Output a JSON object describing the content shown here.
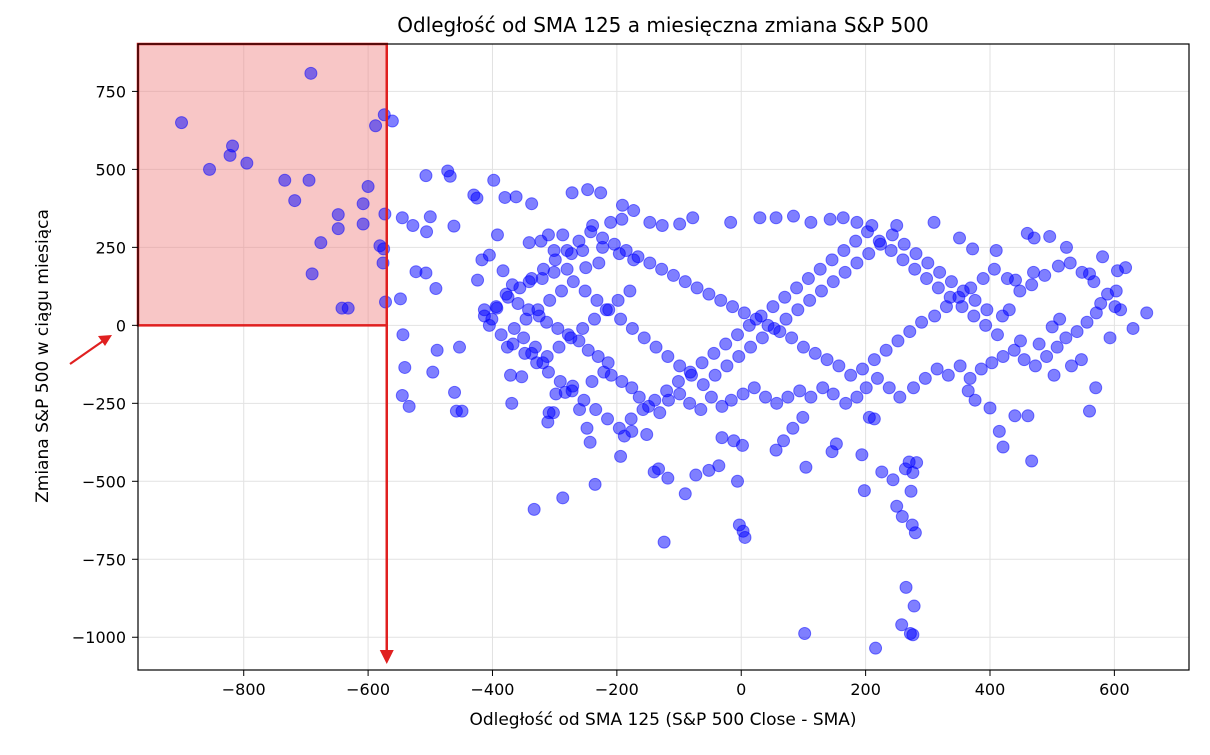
{
  "chart_data": {
    "type": "scatter",
    "title": "Odległość od SMA 125 a miesięczna zmiana S&P 500",
    "xlabel": "Odległość od SMA 125 (S&P 500 Close - SMA)",
    "ylabel": "Zmiana S&P 500 w ciągu miesiąca",
    "xlim": [
      -970,
      720
    ],
    "ylim": [
      -1105,
      902
    ],
    "x_ticks": [
      -800,
      -600,
      -400,
      -200,
      0,
      200,
      400,
      600
    ],
    "x_tick_labels": [
      "−800",
      "−600",
      "−400",
      "−200",
      "0",
      "200",
      "400",
      "600"
    ],
    "y_ticks": [
      750,
      500,
      250,
      0,
      -250,
      -500,
      -750,
      -1000
    ],
    "y_tick_labels": [
      "750",
      "500",
      "250",
      "0",
      "−250",
      "−500",
      "−750",
      "−1000"
    ],
    "grid": true,
    "point_color": "#0000ff",
    "point_opacity": 0.5,
    "highlight": {
      "x_range": [
        -970,
        -570
      ],
      "y_range": [
        0,
        902
      ],
      "fill": "#f08080",
      "edge": "#e02020"
    },
    "arrow_down_x": -570,
    "points": [
      [
        -692,
        808
      ],
      [
        -900,
        650
      ],
      [
        -818,
        575
      ],
      [
        -822,
        545
      ],
      [
        -855,
        500
      ],
      [
        -795,
        520
      ],
      [
        -734,
        465
      ],
      [
        -695,
        465
      ],
      [
        -718,
        400
      ],
      [
        -600,
        445
      ],
      [
        -608,
        390
      ],
      [
        -648,
        355
      ],
      [
        -573,
        357
      ],
      [
        -676,
        265
      ],
      [
        -648,
        310
      ],
      [
        -608,
        325
      ],
      [
        -581,
        255
      ],
      [
        -575,
        245
      ],
      [
        -576,
        200
      ],
      [
        -690,
        165
      ],
      [
        -572,
        75
      ],
      [
        -642,
        55
      ],
      [
        -632,
        55
      ],
      [
        -588,
        640
      ],
      [
        -574,
        675
      ],
      [
        -561,
        655
      ],
      [
        -472,
        495
      ],
      [
        -468,
        478
      ],
      [
        -507,
        480
      ],
      [
        -398,
        465
      ],
      [
        -430,
        418
      ],
      [
        -425,
        408
      ],
      [
        -380,
        410
      ],
      [
        -362,
        412
      ],
      [
        -337,
        390
      ],
      [
        -272,
        425
      ],
      [
        -247,
        435
      ],
      [
        -226,
        425
      ],
      [
        -191,
        385
      ],
      [
        -173,
        368
      ],
      [
        -500,
        348
      ],
      [
        -462,
        318
      ],
      [
        -506,
        300
      ],
      [
        -523,
        172
      ],
      [
        -507,
        168
      ],
      [
        -491,
        118
      ],
      [
        -545,
        345
      ],
      [
        -528,
        320
      ],
      [
        -548,
        85
      ],
      [
        -544,
        -30
      ],
      [
        -541,
        -135
      ],
      [
        -545,
        -225
      ],
      [
        -534,
        -260
      ],
      [
        -489,
        -80
      ],
      [
        -496,
        -150
      ],
      [
        -453,
        -70
      ],
      [
        -461,
        -215
      ],
      [
        -458,
        -275
      ],
      [
        -449,
        -275
      ],
      [
        -417,
        210
      ],
      [
        -424,
        145
      ],
      [
        -405,
        225
      ],
      [
        -392,
        290
      ],
      [
        -383,
        175
      ],
      [
        -393,
        55
      ],
      [
        -413,
        50
      ],
      [
        -401,
        20
      ],
      [
        -376,
        -70
      ],
      [
        -371,
        -160
      ],
      [
        -369,
        -250
      ],
      [
        -353,
        -165
      ],
      [
        -337,
        -90
      ],
      [
        -319,
        -120
      ],
      [
        -298,
        -220
      ],
      [
        -309,
        -280
      ],
      [
        -283,
        -215
      ],
      [
        -271,
        -195
      ],
      [
        -248,
        -330
      ],
      [
        -243,
        -375
      ],
      [
        -235,
        -510
      ],
      [
        -333,
        -590
      ],
      [
        -287,
        -553
      ],
      [
        -124,
        -695
      ],
      [
        -311,
        -310
      ],
      [
        -302,
        -280
      ],
      [
        -260,
        -270
      ],
      [
        -240,
        -180
      ],
      [
        -221,
        -150
      ],
      [
        -194,
        -420
      ],
      [
        -188,
        -355
      ],
      [
        -176,
        -340
      ],
      [
        -152,
        -350
      ],
      [
        -140,
        -470
      ],
      [
        -133,
        -460
      ],
      [
        -118,
        -490
      ],
      [
        -90,
        -540
      ],
      [
        -73,
        -480
      ],
      [
        -52,
        -465
      ],
      [
        -36,
        -450
      ],
      [
        -6,
        -500
      ],
      [
        -3,
        -640
      ],
      [
        3,
        -660
      ],
      [
        6,
        -680
      ],
      [
        2,
        -385
      ],
      [
        -12,
        -370
      ],
      [
        -31,
        -360
      ],
      [
        56,
        -400
      ],
      [
        68,
        -370
      ],
      [
        83,
        -330
      ],
      [
        99,
        -295
      ],
      [
        104,
        -455
      ],
      [
        146,
        -405
      ],
      [
        153,
        -380
      ],
      [
        194,
        -415
      ],
      [
        206,
        -295
      ],
      [
        214,
        -300
      ],
      [
        198,
        -530
      ],
      [
        226,
        -470
      ],
      [
        244,
        -495
      ],
      [
        250,
        -580
      ],
      [
        259,
        -613
      ],
      [
        264,
        -460
      ],
      [
        276,
        -472
      ],
      [
        270,
        -438
      ],
      [
        282,
        -440
      ],
      [
        273,
        -532
      ],
      [
        275,
        -640
      ],
      [
        280,
        -665
      ],
      [
        265,
        -840
      ],
      [
        278,
        -900
      ],
      [
        258,
        -960
      ],
      [
        272,
        -988
      ],
      [
        276,
        -992
      ],
      [
        216,
        -1035
      ],
      [
        102,
        -988
      ],
      [
        365,
        -210
      ],
      [
        376,
        -240
      ],
      [
        400,
        -265
      ],
      [
        415,
        -340
      ],
      [
        421,
        -390
      ],
      [
        440,
        -290
      ],
      [
        461,
        -290
      ],
      [
        467,
        -435
      ],
      [
        547,
        -110
      ],
      [
        560,
        -275
      ],
      [
        570,
        -200
      ],
      [
        593,
        -40
      ],
      [
        610,
        50
      ],
      [
        630,
        -10
      ],
      [
        652,
        40
      ],
      [
        605,
        175
      ],
      [
        618,
        185
      ],
      [
        581,
        220
      ],
      [
        560,
        165
      ],
      [
        523,
        250
      ],
      [
        496,
        285
      ],
      [
        471,
        280
      ],
      [
        460,
        295
      ],
      [
        431,
        50
      ],
      [
        420,
        30
      ],
      [
        449,
        -50
      ],
      [
        479,
        -60
      ],
      [
        503,
        -160
      ],
      [
        531,
        -130
      ],
      [
        500,
        -5
      ],
      [
        512,
        20
      ],
      [
        578,
        70
      ],
      [
        601,
        60
      ],
      [
        470,
        170
      ],
      [
        441,
        145
      ],
      [
        410,
        240
      ],
      [
        372,
        245
      ],
      [
        351,
        280
      ],
      [
        310,
        330
      ],
      [
        250,
        320
      ],
      [
        210,
        320
      ],
      [
        186,
        330
      ],
      [
        164,
        345
      ],
      [
        143,
        340
      ],
      [
        112,
        330
      ],
      [
        84,
        350
      ],
      [
        56,
        345
      ],
      [
        30,
        345
      ],
      [
        -17,
        330
      ],
      [
        -78,
        345
      ],
      [
        -99,
        325
      ],
      [
        -127,
        320
      ],
      [
        -147,
        330
      ],
      [
        -192,
        340
      ],
      [
        -210,
        330
      ],
      [
        -239,
        320
      ],
      [
        -287,
        290
      ],
      [
        -310,
        290
      ],
      [
        -322,
        270
      ],
      [
        -341,
        265
      ],
      [
        -301,
        240
      ],
      [
        -273,
        230
      ],
      [
        -255,
        240
      ],
      [
        -223,
        250
      ],
      [
        -196,
        230
      ],
      [
        -173,
        210
      ],
      [
        -229,
        200
      ],
      [
        -250,
        185
      ],
      [
        -280,
        180
      ],
      [
        -301,
        170
      ],
      [
        -320,
        150
      ],
      [
        -341,
        140
      ],
      [
        -368,
        130
      ],
      [
        -378,
        100
      ],
      [
        -359,
        70
      ],
      [
        -342,
        50
      ],
      [
        -325,
        30
      ],
      [
        -313,
        10
      ],
      [
        -295,
        -10
      ],
      [
        -278,
        -30
      ],
      [
        -261,
        -50
      ],
      [
        -246,
        -80
      ],
      [
        -230,
        -100
      ],
      [
        -214,
        -120
      ],
      [
        -209,
        -160
      ],
      [
        -192,
        -180
      ],
      [
        -176,
        -200
      ],
      [
        -164,
        -230
      ],
      [
        -149,
        -260
      ],
      [
        -131,
        -280
      ],
      [
        -117,
        -240
      ],
      [
        -99,
        -220
      ],
      [
        -83,
        -250
      ],
      [
        -65,
        -270
      ],
      [
        -48,
        -230
      ],
      [
        -31,
        -260
      ],
      [
        -16,
        -240
      ],
      [
        3,
        -220
      ],
      [
        21,
        -200
      ],
      [
        39,
        -230
      ],
      [
        57,
        -250
      ],
      [
        75,
        -230
      ],
      [
        94,
        -210
      ],
      [
        112,
        -230
      ],
      [
        131,
        -200
      ],
      [
        148,
        -220
      ],
      [
        168,
        -250
      ],
      [
        186,
        -230
      ],
      [
        201,
        -200
      ],
      [
        219,
        -170
      ],
      [
        238,
        -200
      ],
      [
        255,
        -230
      ],
      [
        277,
        -200
      ],
      [
        296,
        -170
      ],
      [
        315,
        -140
      ],
      [
        333,
        -160
      ],
      [
        352,
        -130
      ],
      [
        368,
        -170
      ],
      [
        386,
        -140
      ],
      [
        403,
        -120
      ],
      [
        421,
        -100
      ],
      [
        439,
        -80
      ],
      [
        455,
        -110
      ],
      [
        473,
        -130
      ],
      [
        491,
        -100
      ],
      [
        508,
        -70
      ],
      [
        522,
        -40
      ],
      [
        540,
        -20
      ],
      [
        556,
        10
      ],
      [
        571,
        40
      ],
      [
        589,
        100
      ],
      [
        603,
        110
      ],
      [
        567,
        140
      ],
      [
        548,
        170
      ],
      [
        529,
        200
      ],
      [
        510,
        190
      ],
      [
        488,
        160
      ],
      [
        467,
        130
      ],
      [
        448,
        110
      ],
      [
        428,
        150
      ],
      [
        407,
        180
      ],
      [
        389,
        150
      ],
      [
        369,
        120
      ],
      [
        350,
        90
      ],
      [
        330,
        60
      ],
      [
        311,
        30
      ],
      [
        290,
        10
      ],
      [
        271,
        -20
      ],
      [
        252,
        -50
      ],
      [
        233,
        -80
      ],
      [
        214,
        -110
      ],
      [
        195,
        -140
      ],
      [
        176,
        -160
      ],
      [
        157,
        -130
      ],
      [
        138,
        -110
      ],
      [
        119,
        -90
      ],
      [
        100,
        -70
      ],
      [
        81,
        -40
      ],
      [
        62,
        -20
      ],
      [
        43,
        0
      ],
      [
        24,
        20
      ],
      [
        5,
        40
      ],
      [
        -14,
        60
      ],
      [
        -33,
        80
      ],
      [
        -52,
        100
      ],
      [
        -71,
        120
      ],
      [
        -90,
        140
      ],
      [
        -109,
        160
      ],
      [
        -128,
        180
      ],
      [
        -147,
        200
      ],
      [
        -166,
        220
      ],
      [
        -185,
        240
      ],
      [
        -204,
        260
      ],
      [
        -223,
        280
      ],
      [
        -242,
        300
      ],
      [
        -261,
        270
      ],
      [
        -280,
        240
      ],
      [
        -299,
        210
      ],
      [
        -318,
        180
      ],
      [
        -337,
        150
      ],
      [
        -356,
        120
      ],
      [
        -375,
        90
      ],
      [
        -394,
        60
      ],
      [
        -413,
        30
      ],
      [
        -405,
        0
      ],
      [
        -386,
        -30
      ],
      [
        -367,
        -60
      ],
      [
        -348,
        -90
      ],
      [
        -329,
        -120
      ],
      [
        -310,
        -150
      ],
      [
        -291,
        -180
      ],
      [
        -272,
        -210
      ],
      [
        -253,
        -240
      ],
      [
        -234,
        -270
      ],
      [
        -215,
        -300
      ],
      [
        -196,
        -330
      ],
      [
        -177,
        -300
      ],
      [
        -158,
        -270
      ],
      [
        -139,
        -240
      ],
      [
        -120,
        -210
      ],
      [
        -101,
        -180
      ],
      [
        -82,
        -150
      ],
      [
        -63,
        -120
      ],
      [
        -44,
        -90
      ],
      [
        -25,
        -60
      ],
      [
        -6,
        -30
      ],
      [
        13,
        0
      ],
      [
        32,
        30
      ],
      [
        51,
        60
      ],
      [
        70,
        90
      ],
      [
        89,
        120
      ],
      [
        108,
        150
      ],
      [
        127,
        180
      ],
      [
        146,
        210
      ],
      [
        165,
        240
      ],
      [
        184,
        270
      ],
      [
        203,
        300
      ],
      [
        222,
        270
      ],
      [
        241,
        240
      ],
      [
        260,
        210
      ],
      [
        279,
        180
      ],
      [
        298,
        150
      ],
      [
        317,
        120
      ],
      [
        336,
        90
      ],
      [
        355,
        60
      ],
      [
        374,
        30
      ],
      [
        393,
        0
      ],
      [
        412,
        -30
      ],
      [
        395,
        50
      ],
      [
        376,
        80
      ],
      [
        357,
        110
      ],
      [
        338,
        140
      ],
      [
        319,
        170
      ],
      [
        300,
        200
      ],
      [
        281,
        230
      ],
      [
        262,
        260
      ],
      [
        243,
        290
      ],
      [
        224,
        260
      ],
      [
        205,
        230
      ],
      [
        186,
        200
      ],
      [
        167,
        170
      ],
      [
        148,
        140
      ],
      [
        129,
        110
      ],
      [
        110,
        80
      ],
      [
        91,
        50
      ],
      [
        72,
        20
      ],
      [
        53,
        -10
      ],
      [
        34,
        -40
      ],
      [
        15,
        -70
      ],
      [
        -4,
        -100
      ],
      [
        -23,
        -130
      ],
      [
        -42,
        -160
      ],
      [
        -61,
        -190
      ],
      [
        -80,
        -160
      ],
      [
        -99,
        -130
      ],
      [
        -118,
        -100
      ],
      [
        -137,
        -70
      ],
      [
        -156,
        -40
      ],
      [
        -175,
        -10
      ],
      [
        -194,
        20
      ],
      [
        -213,
        50
      ],
      [
        -232,
        80
      ],
      [
        -251,
        110
      ],
      [
        -270,
        140
      ],
      [
        -289,
        110
      ],
      [
        -308,
        80
      ],
      [
        -327,
        50
      ],
      [
        -346,
        20
      ],
      [
        -365,
        -10
      ],
      [
        -350,
        -40
      ],
      [
        -331,
        -70
      ],
      [
        -312,
        -100
      ],
      [
        -293,
        -70
      ],
      [
        -274,
        -40
      ],
      [
        -255,
        -10
      ],
      [
        -236,
        20
      ],
      [
        -217,
        50
      ],
      [
        -198,
        80
      ],
      [
        -179,
        110
      ]
    ]
  }
}
